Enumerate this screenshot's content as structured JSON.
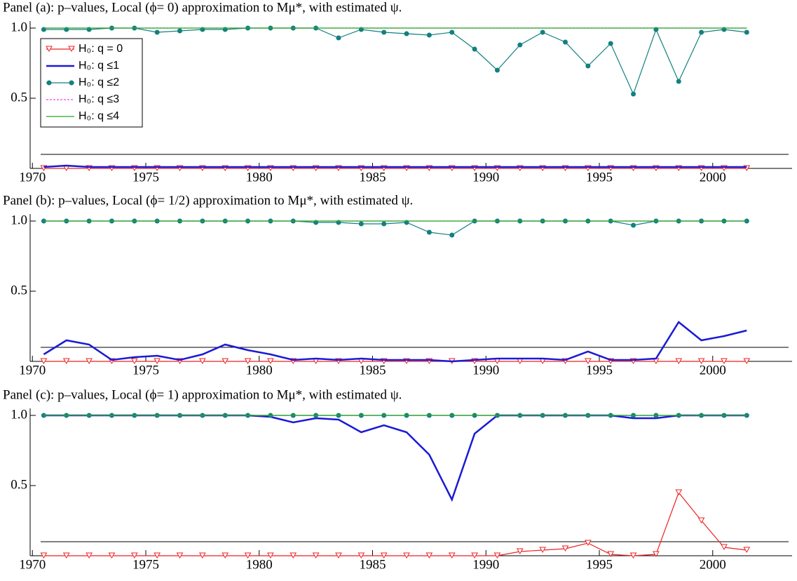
{
  "chart_data": [
    {
      "type": "line",
      "title": "Panel (a): p–values, Local (ϕ= 0) approximation to Mμ*, with estimated ψ.",
      "x": [
        1970.5,
        1971.5,
        1972.5,
        1973.5,
        1974.5,
        1975.5,
        1976.5,
        1977.5,
        1978.5,
        1979.5,
        1980.5,
        1981.5,
        1982.5,
        1983.5,
        1984.5,
        1985.5,
        1986.5,
        1987.5,
        1988.5,
        1989.5,
        1990.5,
        1991.5,
        1992.5,
        1993.5,
        1994.5,
        1995.5,
        1996.5,
        1997.5,
        1998.5,
        1999.5,
        2000.5,
        2001.5
      ],
      "xlim": [
        1969.9,
        2003.5
      ],
      "xticks": [
        1970,
        1975,
        1980,
        1985,
        1990,
        1995,
        2000
      ],
      "ylim": [
        0,
        1.05
      ],
      "yticks": [
        0.5,
        {
          "value": 1,
          "label": "1.0"
        }
      ],
      "reference_line": 0.1,
      "legend": "upper left",
      "series": [
        {
          "name": "H₀: q = 0",
          "color": "#ee2222",
          "marker": "triangle",
          "values": [
            0,
            0,
            0,
            0,
            0,
            0,
            0,
            0,
            0,
            0,
            0,
            0,
            0,
            0,
            0,
            0,
            0,
            0,
            0,
            0,
            0,
            0,
            0,
            0,
            0,
            0,
            0,
            0,
            0,
            0,
            0,
            0
          ]
        },
        {
          "name": "H₀: q ≤1",
          "color": "#1a1ad6",
          "width": 2.5,
          "values": [
            0.01,
            0.02,
            0.01,
            0.01,
            0.01,
            0.01,
            0.01,
            0.01,
            0.01,
            0.01,
            0.01,
            0.01,
            0.01,
            0.01,
            0.01,
            0.01,
            0.01,
            0.01,
            0.01,
            0.01,
            0.01,
            0.01,
            0.01,
            0.01,
            0.01,
            0.01,
            0.01,
            0.01,
            0.01,
            0.01,
            0.01,
            0.01
          ]
        },
        {
          "name": "H₀: q ≤2",
          "color": "#138080",
          "marker": "circle",
          "values": [
            0.99,
            0.99,
            0.99,
            1,
            1,
            0.97,
            0.98,
            0.99,
            0.99,
            1,
            1,
            1,
            1,
            0.93,
            0.99,
            0.97,
            0.96,
            0.95,
            0.97,
            0.85,
            0.7,
            0.88,
            0.97,
            0.9,
            0.73,
            0.89,
            0.53,
            0.99,
            0.62,
            0.97,
            0.99,
            0.97
          ]
        },
        {
          "name": "H₀: q ≤3",
          "color": "#ee44ee",
          "dash": true,
          "values": [
            1,
            1,
            1,
            1,
            1,
            1,
            1,
            1,
            1,
            1,
            1,
            1,
            1,
            1,
            1,
            1,
            1,
            1,
            1,
            1,
            1,
            1,
            1,
            1,
            1,
            1,
            1,
            1,
            1,
            1,
            1,
            1
          ]
        },
        {
          "name": "H₀: q ≤4",
          "color": "#22aa22",
          "values": [
            1,
            1,
            1,
            1,
            1,
            1,
            1,
            1,
            1,
            1,
            1,
            1,
            1,
            1,
            1,
            1,
            1,
            1,
            1,
            1,
            1,
            1,
            1,
            1,
            1,
            1,
            1,
            1,
            1,
            1,
            1,
            1
          ]
        }
      ]
    },
    {
      "type": "line",
      "title": "Panel (b): p–values, Local (ϕ= 1/2) approximation to Mμ*, with estimated ψ.",
      "x": [
        1970.5,
        1971.5,
        1972.5,
        1973.5,
        1974.5,
        1975.5,
        1976.5,
        1977.5,
        1978.5,
        1979.5,
        1980.5,
        1981.5,
        1982.5,
        1983.5,
        1984.5,
        1985.5,
        1986.5,
        1987.5,
        1988.5,
        1989.5,
        1990.5,
        1991.5,
        1992.5,
        1993.5,
        1994.5,
        1995.5,
        1996.5,
        1997.5,
        1998.5,
        1999.5,
        2000.5,
        2001.5
      ],
      "xlim": [
        1969.9,
        2003.5
      ],
      "xticks": [
        1970,
        1975,
        1980,
        1985,
        1990,
        1995,
        2000
      ],
      "ylim": [
        0,
        1.05
      ],
      "yticks": [
        0.5,
        {
          "value": 1,
          "label": "1.0"
        }
      ],
      "reference_line": 0.1,
      "series": [
        {
          "color": "#ee2222",
          "marker": "triangle",
          "values": [
            0,
            0,
            0,
            0,
            0,
            0,
            0,
            0,
            0,
            0,
            0,
            0,
            0,
            0,
            0,
            0,
            0,
            0,
            0,
            0,
            0,
            0,
            0,
            0,
            0,
            0,
            0,
            0,
            0,
            0,
            0,
            0
          ]
        },
        {
          "color": "#1a1ad6",
          "width": 2.5,
          "values": [
            0.05,
            0.15,
            0.12,
            0.01,
            0.03,
            0.04,
            0.01,
            0.05,
            0.12,
            0.08,
            0.05,
            0.01,
            0.02,
            0.01,
            0.02,
            0.01,
            0.01,
            0.01,
            0,
            0.01,
            0.02,
            0.02,
            0.02,
            0.01,
            0.07,
            0.01,
            0.01,
            0.02,
            0.28,
            0.15,
            0.18,
            0.22
          ]
        },
        {
          "color": "#138080",
          "marker": "circle",
          "values": [
            1,
            1,
            1,
            1,
            1,
            1,
            1,
            1,
            1,
            1,
            1,
            1,
            0.99,
            0.99,
            0.98,
            0.98,
            0.99,
            0.92,
            0.9,
            1,
            1,
            1,
            1,
            1,
            1,
            1,
            0.97,
            1,
            1,
            1,
            1,
            1
          ]
        },
        {
          "color": "#ee44ee",
          "dash": true,
          "values": [
            1,
            1,
            1,
            1,
            1,
            1,
            1,
            1,
            1,
            1,
            1,
            1,
            1,
            1,
            1,
            1,
            1,
            1,
            1,
            1,
            1,
            1,
            1,
            1,
            1,
            1,
            1,
            1,
            1,
            1,
            1,
            1
          ]
        },
        {
          "color": "#22aa22",
          "values": [
            1,
            1,
            1,
            1,
            1,
            1,
            1,
            1,
            1,
            1,
            1,
            1,
            1,
            1,
            1,
            1,
            1,
            1,
            1,
            1,
            1,
            1,
            1,
            1,
            1,
            1,
            1,
            1,
            1,
            1,
            1,
            1
          ]
        }
      ]
    },
    {
      "type": "line",
      "title": "Panel (c): p–values, Local (ϕ= 1) approximation to Mμ*, with estimated ψ.",
      "x": [
        1970.5,
        1971.5,
        1972.5,
        1973.5,
        1974.5,
        1975.5,
        1976.5,
        1977.5,
        1978.5,
        1979.5,
        1980.5,
        1981.5,
        1982.5,
        1983.5,
        1984.5,
        1985.5,
        1986.5,
        1987.5,
        1988.5,
        1989.5,
        1990.5,
        1991.5,
        1992.5,
        1993.5,
        1994.5,
        1995.5,
        1996.5,
        1997.5,
        1998.5,
        1999.5,
        2000.5,
        2001.5
      ],
      "xlim": [
        1969.9,
        2003.5
      ],
      "xticks": [
        1970,
        1975,
        1980,
        1985,
        1990,
        1995,
        2000
      ],
      "ylim": [
        0,
        1.05
      ],
      "yticks": [
        0.5,
        {
          "value": 1,
          "label": "1.0"
        }
      ],
      "reference_line": 0.1,
      "series": [
        {
          "color": "#ee2222",
          "marker": "triangle",
          "values": [
            0,
            0,
            0,
            0,
            0,
            0,
            0,
            0,
            0,
            0,
            0,
            0,
            0,
            0,
            0,
            0,
            0,
            0,
            0,
            0,
            0,
            0.03,
            0.04,
            0.05,
            0.09,
            0.01,
            0,
            0.01,
            0.45,
            0.25,
            0.06,
            0.04
          ]
        },
        {
          "color": "#1a1ad6",
          "width": 2.5,
          "values": [
            1,
            1,
            1,
            1,
            1,
            1,
            1,
            1,
            1,
            1,
            0.99,
            0.95,
            0.98,
            0.97,
            0.88,
            0.93,
            0.88,
            0.72,
            0.4,
            0.87,
            1,
            1,
            1,
            1,
            1,
            1,
            0.98,
            0.98,
            1,
            1,
            1,
            1
          ]
        },
        {
          "color": "#138080",
          "marker": "circle",
          "values": [
            1,
            1,
            1,
            1,
            1,
            1,
            1,
            1,
            1,
            1,
            1,
            1,
            1,
            1,
            1,
            1,
            1,
            1,
            1,
            1,
            1,
            1,
            1,
            1,
            1,
            1,
            1,
            1,
            1,
            1,
            1,
            1
          ]
        },
        {
          "color": "#ee44ee",
          "dash": true,
          "values": [
            1,
            1,
            1,
            1,
            1,
            1,
            1,
            1,
            1,
            1,
            1,
            1,
            1,
            1,
            1,
            1,
            1,
            1,
            1,
            1,
            1,
            1,
            1,
            1,
            1,
            1,
            1,
            1,
            1,
            1,
            1,
            1
          ]
        },
        {
          "color": "#22aa22",
          "values": [
            1,
            1,
            1,
            1,
            1,
            1,
            1,
            1,
            1,
            1,
            1,
            1,
            1,
            1,
            1,
            1,
            1,
            1,
            1,
            1,
            1,
            1,
            1,
            1,
            1,
            1,
            1,
            1,
            1,
            1,
            1,
            1
          ]
        }
      ]
    }
  ]
}
